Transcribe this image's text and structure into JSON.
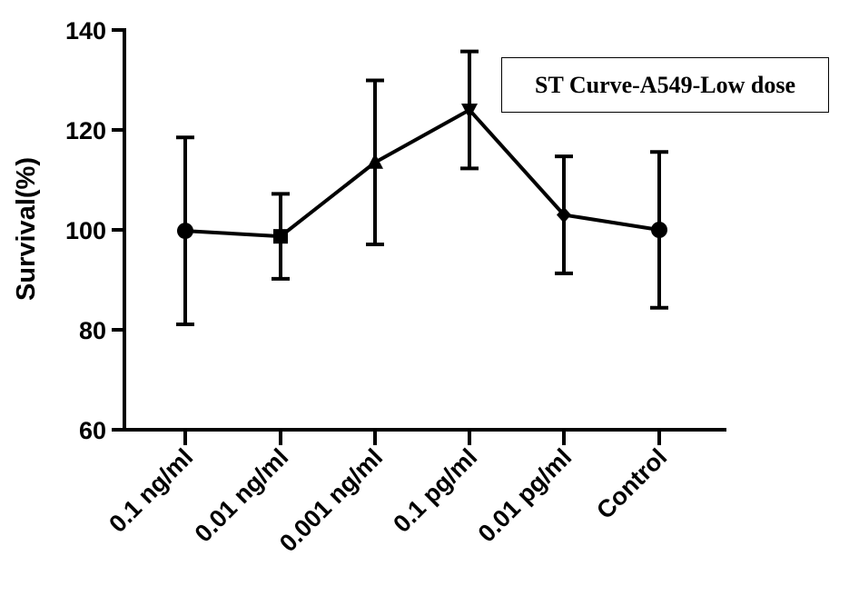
{
  "chart_data": {
    "type": "line",
    "ylabel": "Survival(%)",
    "xlabel": "",
    "ylim": [
      60,
      140
    ],
    "yticks": [
      60,
      80,
      100,
      120,
      140
    ],
    "categories": [
      "0.1 ng/ml",
      "0.01 ng/ml",
      "0.001 ng/ml",
      "0.1 pg/ml",
      "0.01 pg/ml",
      "Control"
    ],
    "series": [
      {
        "values": [
          99.8,
          98.7,
          113.5,
          124,
          103,
          100
        ],
        "error": [
          18.7,
          8.5,
          16.4,
          11.7,
          11.7,
          15.6
        ],
        "markers": [
          "circle",
          "square",
          "triangle-up",
          "triangle-down",
          "diamond",
          "circle"
        ],
        "color": "#000000"
      }
    ],
    "legend": {
      "label": "ST Curve-A549-Low dose",
      "placement": "top-right"
    },
    "grid": false
  }
}
